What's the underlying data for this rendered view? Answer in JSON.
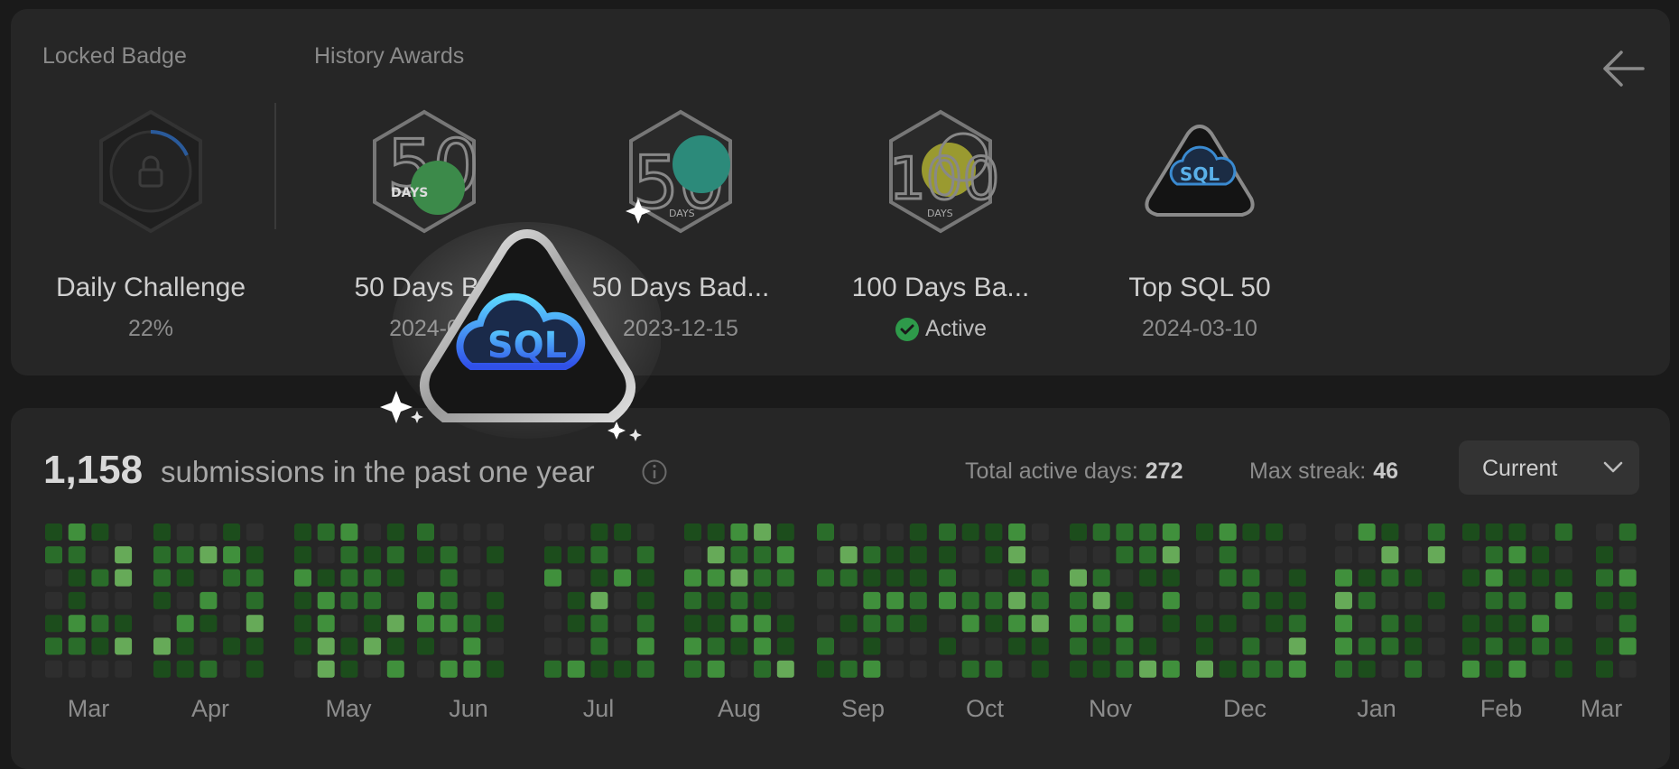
{
  "badges_section": {
    "locked_label": "Locked Badge",
    "history_label": "History Awards",
    "locked_badge": {
      "name": "Daily Challenge",
      "progress": "22%",
      "icon": "locked-daily-challenge-badge-icon"
    },
    "history_badges": [
      {
        "name": "50 Days Ba",
        "date": "2024-0",
        "icon": "fifty-days-badge-icon"
      },
      {
        "name": "50 Days Bad...",
        "date": "2023-12-15",
        "icon": "fifty-days-badge-icon"
      },
      {
        "name": "100 Days Ba...",
        "status": "Active",
        "icon": "hundred-days-badge-icon"
      },
      {
        "name": "Top SQL 50",
        "date": "2024-03-10",
        "icon": "sql-badge-icon"
      }
    ],
    "badge_texts": {
      "days": "DAYS",
      "fifty": "50",
      "hundred": "100",
      "sql": "SQL"
    }
  },
  "submissions": {
    "count": "1,158",
    "label": "submissions in the past one year",
    "total_active_days_label": "Total active days:",
    "total_active_days": "272",
    "max_streak_label": "Max streak:",
    "max_streak": "46",
    "dropdown_value": "Current"
  },
  "calendar": {
    "months": [
      "Mar",
      "Apr",
      "May",
      "Jun",
      "Jul",
      "Aug",
      "Sep",
      "Oct",
      "Nov",
      "Dec",
      "Jan",
      "Feb",
      "Mar"
    ],
    "colors": {
      "empty": "#2e2e2e",
      "l1": "#1c4d1c",
      "l2": "#2a6d2a",
      "l3": "#40903c",
      "l4": "#66aa58"
    }
  }
}
